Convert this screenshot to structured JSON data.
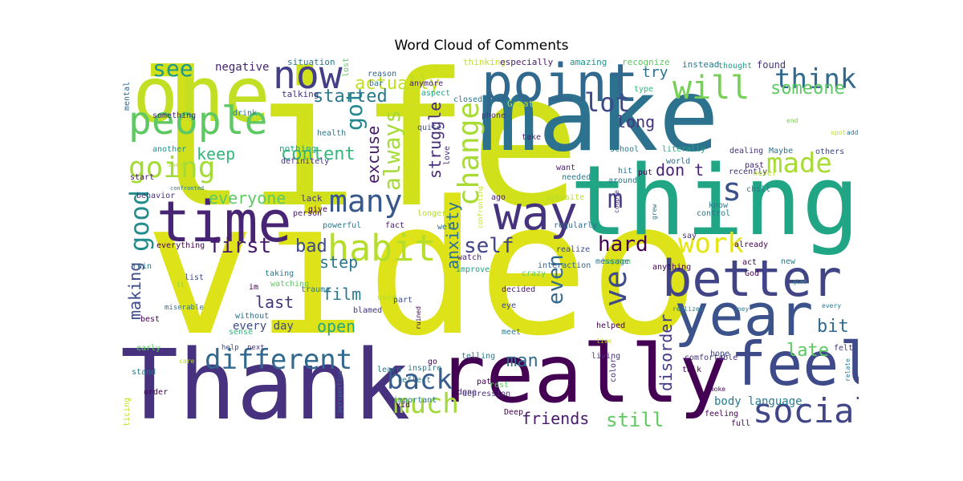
{
  "title": "Word Cloud of Comments",
  "words": [
    {
      "text": "video",
      "color": "#dde318"
    },
    {
      "text": "life",
      "color": "#d0e11c"
    },
    {
      "text": "make",
      "color": "#2c728e"
    },
    {
      "text": "thing",
      "color": "#21a685"
    },
    {
      "text": "Thank",
      "color": "#46327e"
    },
    {
      "text": "really",
      "color": "#440154"
    },
    {
      "text": "one",
      "color": "#c2df23"
    },
    {
      "text": "point",
      "color": "#31688e"
    },
    {
      "text": "time",
      "color": "#482475"
    },
    {
      "text": "year",
      "color": "#3b528b"
    },
    {
      "text": "better",
      "color": "#414487"
    },
    {
      "text": "feel",
      "color": "#3e4a89"
    },
    {
      "text": "way",
      "color": "#46337e"
    },
    {
      "text": "people",
      "color": "#5ec962"
    },
    {
      "text": "now",
      "color": "#433e85"
    },
    {
      "text": "habit",
      "color": "#b5de2b"
    },
    {
      "text": "social",
      "color": "#404688"
    },
    {
      "text": "going",
      "color": "#a5db36"
    },
    {
      "text": "will",
      "color": "#75d054"
    },
    {
      "text": "think",
      "color": "#31688e"
    },
    {
      "text": "many",
      "color": "#38588c"
    },
    {
      "text": "different",
      "color": "#31688e"
    },
    {
      "text": "work",
      "color": "#e5e419"
    },
    {
      "text": "change",
      "color": "#a8db34"
    },
    {
      "text": "much",
      "color": "#a0da39"
    },
    {
      "text": "back",
      "color": "#365c8d"
    },
    {
      "text": "self",
      "color": "#414487"
    },
    {
      "text": "good",
      "color": "#228c8d"
    },
    {
      "text": "first",
      "color": "#481a6c"
    },
    {
      "text": "hard",
      "color": "#440154"
    },
    {
      "text": "made",
      "color": "#a8db34"
    },
    {
      "text": "s",
      "color": "#3b528b"
    },
    {
      "text": "lot",
      "color": "#3e4a89"
    },
    {
      "text": "see",
      "color": "#1f998a"
    },
    {
      "text": "always",
      "color": "#a5db36"
    },
    {
      "text": "got",
      "color": "#24878e"
    },
    {
      "text": "actually",
      "color": "#c2df23"
    },
    {
      "text": "someone",
      "color": "#5ec962"
    },
    {
      "text": "ve",
      "color": "#3e4a89"
    },
    {
      "text": "even",
      "color": "#31688e"
    },
    {
      "text": "m",
      "color": "#433e85"
    },
    {
      "text": "anxiety",
      "color": "#2d708e"
    },
    {
      "text": "struggle",
      "color": "#472c7a"
    },
    {
      "text": "started",
      "color": "#2a788e"
    },
    {
      "text": "long",
      "color": "#46337e"
    },
    {
      "text": "try",
      "color": "#2c728e"
    },
    {
      "text": "excuse",
      "color": "#481a6c"
    },
    {
      "text": "everyone",
      "color": "#5ec962"
    },
    {
      "text": "content",
      "color": "#35b779"
    },
    {
      "text": "keep",
      "color": "#35b779"
    },
    {
      "text": "bad",
      "color": "#3e4a89"
    },
    {
      "text": "step",
      "color": "#2a788e"
    },
    {
      "text": "last",
      "color": "#46337e"
    },
    {
      "text": "film",
      "color": "#2a788e"
    },
    {
      "text": "open",
      "color": "#22a884"
    },
    {
      "text": "making",
      "color": "#3e4a89"
    },
    {
      "text": "disorder",
      "color": "#443983"
    },
    {
      "text": "late",
      "color": "#5ec962"
    },
    {
      "text": "bit",
      "color": "#31688e"
    },
    {
      "text": "man",
      "color": "#2f6c8e"
    },
    {
      "text": "friends",
      "color": "#481a6c"
    },
    {
      "text": "still",
      "color": "#5ec962"
    },
    {
      "text": "don t",
      "color": "#482475"
    },
    {
      "text": "body language",
      "color": "#287c8e"
    },
    {
      "text": "every day",
      "color": "#3e4a89"
    },
    {
      "text": "negative",
      "color": "#482475"
    },
    {
      "text": "situation",
      "color": "#2a788e"
    },
    {
      "text": "lost",
      "color": "#5ec962"
    },
    {
      "text": "thinking",
      "color": "#c2df23"
    },
    {
      "text": "especially",
      "color": "#481a6c"
    },
    {
      "text": "amazing",
      "color": "#20928c"
    },
    {
      "text": "recognize",
      "color": "#5ec962"
    },
    {
      "text": "instead",
      "color": "#2a788e"
    },
    {
      "text": "thought",
      "color": "#1f9e89"
    },
    {
      "text": "found",
      "color": "#46337e"
    },
    {
      "text": "reason",
      "color": "#31688e"
    },
    {
      "text": "bar",
      "color": "#2c728e"
    },
    {
      "text": "anymore",
      "color": "#481a6c"
    },
    {
      "text": "aspect",
      "color": "#22a884"
    },
    {
      "text": "type",
      "color": "#35b779"
    },
    {
      "text": "mental",
      "color": "#31688e"
    },
    {
      "text": "talking",
      "color": "#46337e"
    },
    {
      "text": "closed",
      "color": "#2a788e"
    },
    {
      "text": "Great",
      "color": "#b5de2b"
    },
    {
      "text": "something",
      "color": "#482475"
    },
    {
      "text": "drink",
      "color": "#2a788e"
    },
    {
      "text": "health",
      "color": "#2a788e"
    },
    {
      "text": "quite",
      "color": "#3e4a89"
    },
    {
      "text": "phone",
      "color": "#46337e"
    },
    {
      "text": "end",
      "color": "#7ad151"
    },
    {
      "text": "spot",
      "color": "#b5de2b"
    },
    {
      "text": "add",
      "color": "#2c728e"
    },
    {
      "text": "nothing",
      "color": "#22a884"
    },
    {
      "text": "definitely",
      "color": "#46337e"
    },
    {
      "text": "love",
      "color": "#472c7a"
    },
    {
      "text": "take",
      "color": "#482475"
    },
    {
      "text": "school",
      "color": "#2a788e"
    },
    {
      "text": "literally",
      "color": "#22a884"
    },
    {
      "text": "dealing",
      "color": "#46337e"
    },
    {
      "text": "Maybe",
      "color": "#2c728e"
    },
    {
      "text": "others",
      "color": "#3e4a89"
    },
    {
      "text": "start",
      "color": "#481a6c"
    },
    {
      "text": "another",
      "color": "#20928c"
    },
    {
      "text": "aware",
      "color": "#b5de2b"
    },
    {
      "text": "confronted",
      "color": "#2a788e"
    },
    {
      "text": "behavior",
      "color": "#46337e"
    },
    {
      "text": "confronting",
      "color": "#c2df23"
    },
    {
      "text": "want",
      "color": "#481a6c"
    },
    {
      "text": "needed",
      "color": "#2a788e"
    },
    {
      "text": "hit",
      "color": "#2c728e"
    },
    {
      "text": "world",
      "color": "#31688e"
    },
    {
      "text": "put",
      "color": "#440154"
    },
    {
      "text": "recently",
      "color": "#46337e"
    },
    {
      "text": "past",
      "color": "#482475"
    },
    {
      "text": "never",
      "color": "#b5de2b"
    },
    {
      "text": "around",
      "color": "#2a788e"
    },
    {
      "text": "ago",
      "color": "#481a6c"
    },
    {
      "text": "opposite",
      "color": "#b5de2b"
    },
    {
      "text": "couple",
      "color": "#46337e"
    },
    {
      "text": "chill",
      "color": "#2a788e"
    },
    {
      "text": "know",
      "color": "#2a788e"
    },
    {
      "text": "lack",
      "color": "#46337e"
    },
    {
      "text": "give",
      "color": "#440154"
    },
    {
      "text": "person",
      "color": "#481a6c"
    },
    {
      "text": "longer",
      "color": "#b5de2b"
    },
    {
      "text": "powerful",
      "color": "#2a788e"
    },
    {
      "text": "fact",
      "color": "#481a6c"
    },
    {
      "text": "well",
      "color": "#2c728e"
    },
    {
      "text": "regularly",
      "color": "#31688e"
    },
    {
      "text": "grew",
      "color": "#2c728e"
    },
    {
      "text": "control",
      "color": "#2a788e"
    },
    {
      "text": "say",
      "color": "#46337e"
    },
    {
      "text": "everything",
      "color": "#440154"
    },
    {
      "text": "realize",
      "color": "#3e4a89"
    },
    {
      "text": "happen",
      "color": "#5ec962"
    },
    {
      "text": "already",
      "color": "#440154"
    },
    {
      "text": "ruin",
      "color": "#2a788e"
    },
    {
      "text": "improve",
      "color": "#1f9e89"
    },
    {
      "text": "God",
      "color": "#440154"
    },
    {
      "text": "crazy",
      "color": "#5ec962"
    },
    {
      "text": "anything",
      "color": "#440154"
    },
    {
      "text": "act",
      "color": "#440154"
    },
    {
      "text": "list",
      "color": "#3e4a89"
    },
    {
      "text": "taking",
      "color": "#2a788e"
    },
    {
      "text": "watch",
      "color": "#482475"
    },
    {
      "text": "interaction",
      "color": "#31688e"
    },
    {
      "text": "message",
      "color": "#2a788e"
    },
    {
      "text": "new",
      "color": "#2a788e"
    },
    {
      "text": "trauma",
      "color": "#2a788e"
    },
    {
      "text": "watching",
      "color": "#5ec962"
    },
    {
      "text": "ll",
      "color": "#7ad151"
    },
    {
      "text": "im",
      "color": "#440154"
    },
    {
      "text": "glad",
      "color": "#22a884"
    },
    {
      "text": "miserable",
      "color": "#2c728e"
    },
    {
      "text": "decided",
      "color": "#481a6c"
    },
    {
      "text": "realized",
      "color": "#2a788e"
    },
    {
      "text": "Joey",
      "color": "#2a788e"
    },
    {
      "text": "every",
      "color": "#2a788e"
    },
    {
      "text": "eye",
      "color": "#3e4a89"
    },
    {
      "text": "blamed",
      "color": "#46337e"
    },
    {
      "text": "used",
      "color": "#b5de2b"
    },
    {
      "text": "part",
      "color": "#3e4a89"
    },
    {
      "text": "ruined",
      "color": "#440154"
    },
    {
      "text": "best",
      "color": "#440154"
    },
    {
      "text": "without",
      "color": "#2c728e"
    },
    {
      "text": "sense",
      "color": "#35b779"
    },
    {
      "text": "meet",
      "color": "#2a788e"
    },
    {
      "text": "helped",
      "color": "#440154"
    },
    {
      "text": "live",
      "color": "#c2df23"
    },
    {
      "text": "early",
      "color": "#5ec962"
    },
    {
      "text": "help",
      "color": "#3e4a89"
    },
    {
      "text": "next",
      "color": "#46337e"
    },
    {
      "text": "hope",
      "color": "#3e4a89"
    },
    {
      "text": "felt",
      "color": "#46337e"
    },
    {
      "text": "stand",
      "color": "#2a788e"
    },
    {
      "text": "telling",
      "color": "#2a788e"
    },
    {
      "text": "living",
      "color": "#46337e"
    },
    {
      "text": "talk",
      "color": "#440154"
    },
    {
      "text": "comfortable",
      "color": "#46337e"
    },
    {
      "text": "inspire",
      "color": "#2a788e"
    },
    {
      "text": "learn",
      "color": "#2a788e"
    },
    {
      "text": "reflect",
      "color": "#2a788e"
    },
    {
      "text": "color",
      "color": "#46337e"
    },
    {
      "text": "relate",
      "color": "#2a788e"
    },
    {
      "text": "order",
      "color": "#440154"
    },
    {
      "text": "done",
      "color": "#482475"
    },
    {
      "text": "smoke",
      "color": "#440154"
    },
    {
      "text": "perspective",
      "color": "#31688e"
    },
    {
      "text": "important",
      "color": "#2a788e"
    },
    {
      "text": "path",
      "color": "#440154"
    },
    {
      "text": "rest",
      "color": "#5ec962"
    },
    {
      "text": "practicing",
      "color": "#c2df23"
    },
    {
      "text": "Deep",
      "color": "#440154"
    },
    {
      "text": "feeling",
      "color": "#440154"
    },
    {
      "text": "depression",
      "color": "#46337e"
    },
    {
      "text": "full",
      "color": "#440154"
    },
    {
      "text": "vid",
      "color": "#440154"
    },
    {
      "text": "go",
      "color": "#440154"
    },
    {
      "text": "care",
      "color": "#b5de2b"
    }
  ]
}
